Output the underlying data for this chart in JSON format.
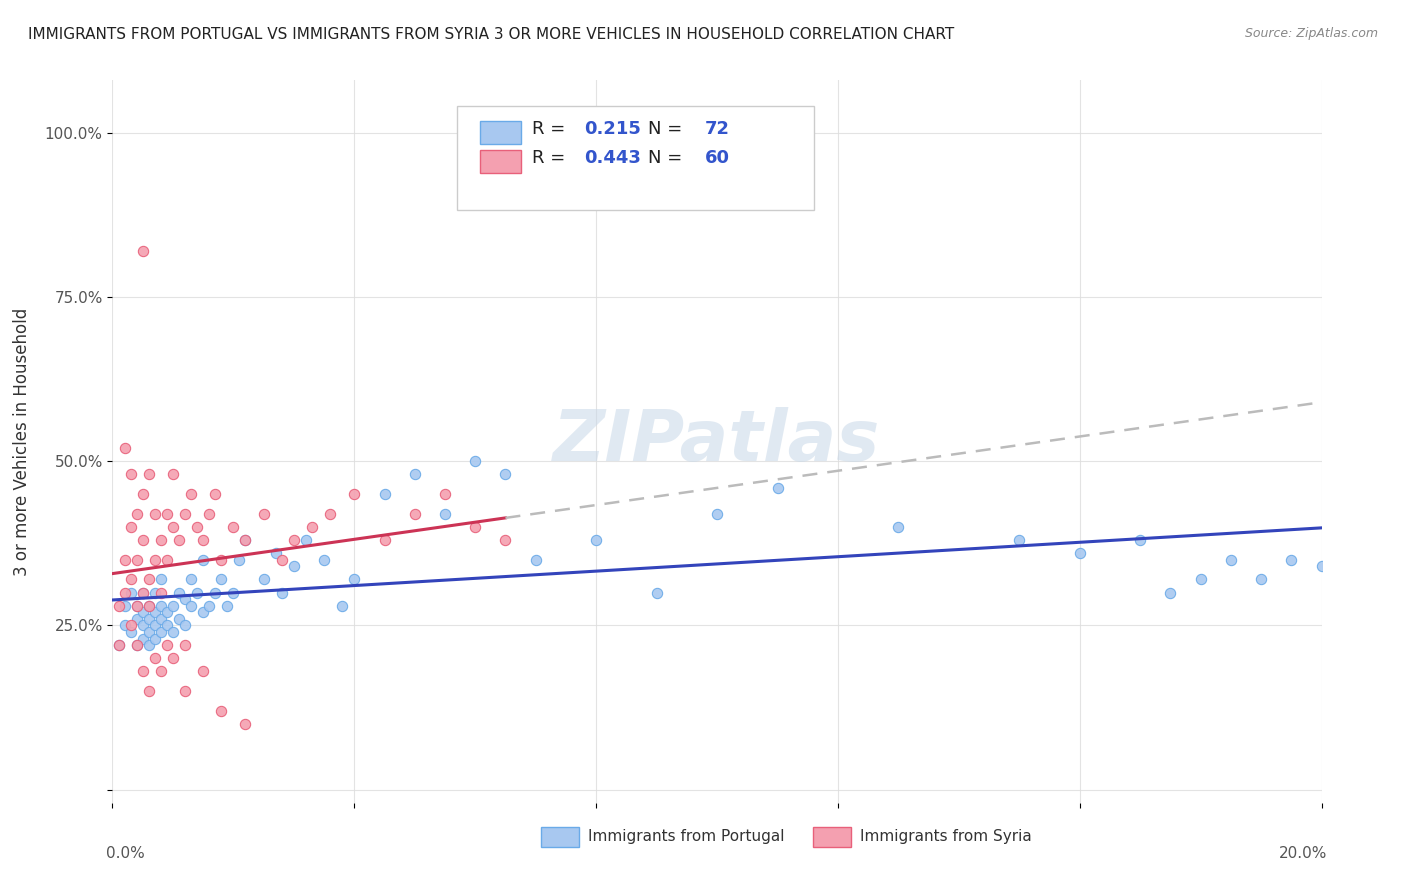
{
  "title": "IMMIGRANTS FROM PORTUGAL VS IMMIGRANTS FROM SYRIA 3 OR MORE VEHICLES IN HOUSEHOLD CORRELATION CHART",
  "source": "Source: ZipAtlas.com",
  "ylabel": "3 or more Vehicles in Household",
  "x_range": [
    0.0,
    0.2
  ],
  "y_range": [
    -0.02,
    1.08
  ],
  "portugal_color": "#a8c8f0",
  "portugal_edge": "#6aaae8",
  "syria_color": "#f4a0b0",
  "syria_edge": "#e8607a",
  "portugal_line_color": "#3344bb",
  "syria_line_color": "#cc3355",
  "dashed_line_color": "#bbbbbb",
  "R_portugal": 0.215,
  "N_portugal": 72,
  "R_syria": 0.443,
  "N_syria": 60,
  "watermark": "ZIPatlas",
  "portugal_scatter_x": [
    0.001,
    0.002,
    0.002,
    0.003,
    0.003,
    0.004,
    0.004,
    0.004,
    0.005,
    0.005,
    0.005,
    0.005,
    0.006,
    0.006,
    0.006,
    0.006,
    0.007,
    0.007,
    0.007,
    0.007,
    0.008,
    0.008,
    0.008,
    0.008,
    0.009,
    0.009,
    0.01,
    0.01,
    0.011,
    0.011,
    0.012,
    0.012,
    0.013,
    0.013,
    0.014,
    0.015,
    0.015,
    0.016,
    0.017,
    0.018,
    0.019,
    0.02,
    0.021,
    0.022,
    0.025,
    0.027,
    0.028,
    0.03,
    0.032,
    0.035,
    0.038,
    0.04,
    0.045,
    0.05,
    0.055,
    0.06,
    0.065,
    0.07,
    0.08,
    0.09,
    0.1,
    0.11,
    0.13,
    0.15,
    0.16,
    0.17,
    0.175,
    0.18,
    0.185,
    0.19,
    0.195,
    0.2
  ],
  "portugal_scatter_y": [
    0.22,
    0.28,
    0.25,
    0.3,
    0.24,
    0.26,
    0.22,
    0.28,
    0.25,
    0.27,
    0.23,
    0.3,
    0.28,
    0.24,
    0.26,
    0.22,
    0.3,
    0.25,
    0.27,
    0.23,
    0.28,
    0.24,
    0.26,
    0.32,
    0.25,
    0.27,
    0.28,
    0.24,
    0.3,
    0.26,
    0.29,
    0.25,
    0.28,
    0.32,
    0.3,
    0.27,
    0.35,
    0.28,
    0.3,
    0.32,
    0.28,
    0.3,
    0.35,
    0.38,
    0.32,
    0.36,
    0.3,
    0.34,
    0.38,
    0.35,
    0.28,
    0.32,
    0.45,
    0.48,
    0.42,
    0.5,
    0.48,
    0.35,
    0.38,
    0.3,
    0.42,
    0.46,
    0.4,
    0.38,
    0.36,
    0.38,
    0.3,
    0.32,
    0.35,
    0.32,
    0.35,
    0.34
  ],
  "syria_scatter_x": [
    0.001,
    0.001,
    0.002,
    0.002,
    0.003,
    0.003,
    0.003,
    0.004,
    0.004,
    0.004,
    0.005,
    0.005,
    0.005,
    0.006,
    0.006,
    0.006,
    0.007,
    0.007,
    0.008,
    0.008,
    0.009,
    0.009,
    0.01,
    0.01,
    0.011,
    0.012,
    0.013,
    0.014,
    0.015,
    0.016,
    0.017,
    0.018,
    0.02,
    0.022,
    0.025,
    0.028,
    0.03,
    0.033,
    0.036,
    0.04,
    0.045,
    0.05,
    0.055,
    0.06,
    0.065,
    0.002,
    0.003,
    0.004,
    0.005,
    0.006,
    0.007,
    0.008,
    0.009,
    0.01,
    0.012,
    0.015,
    0.018,
    0.022,
    0.005,
    0.012
  ],
  "syria_scatter_y": [
    0.22,
    0.28,
    0.3,
    0.35,
    0.25,
    0.32,
    0.4,
    0.28,
    0.35,
    0.42,
    0.3,
    0.38,
    0.45,
    0.32,
    0.28,
    0.48,
    0.35,
    0.42,
    0.3,
    0.38,
    0.35,
    0.42,
    0.4,
    0.48,
    0.38,
    0.42,
    0.45,
    0.4,
    0.38,
    0.42,
    0.45,
    0.35,
    0.4,
    0.38,
    0.42,
    0.35,
    0.38,
    0.4,
    0.42,
    0.45,
    0.38,
    0.42,
    0.45,
    0.4,
    0.38,
    0.52,
    0.48,
    0.22,
    0.18,
    0.15,
    0.2,
    0.18,
    0.22,
    0.2,
    0.15,
    0.18,
    0.12,
    0.1,
    0.82,
    0.22
  ]
}
